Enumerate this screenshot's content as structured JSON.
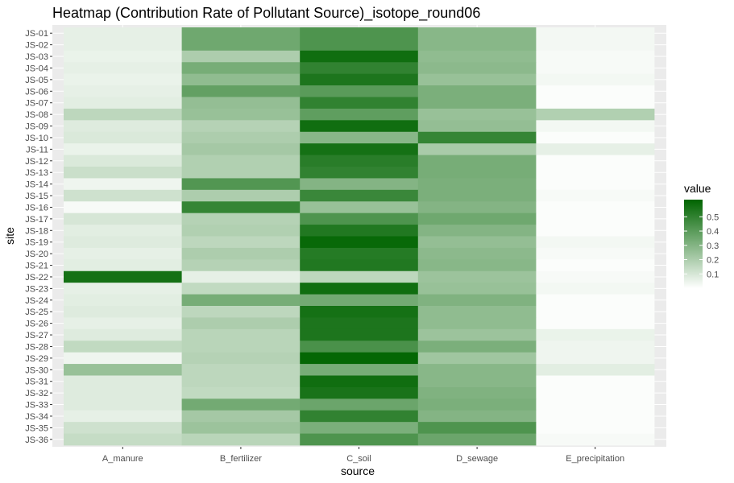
{
  "chart_data": {
    "type": "heatmap",
    "title": "Heatmap (Contribution Rate of Pollutant Source)_isotope_round06",
    "xlabel": "source",
    "ylabel": "site",
    "x_categories": [
      "A_manure",
      "B_fertilizer",
      "C_soil",
      "D_sewage",
      "E_precipitation"
    ],
    "y_categories": [
      "JS-01",
      "JS-02",
      "JS-03",
      "JS-04",
      "JS-05",
      "JS-06",
      "JS-07",
      "JS-08",
      "JS-09",
      "JS-10",
      "JS-11",
      "JS-12",
      "JS-13",
      "JS-14",
      "JS-15",
      "JS-16",
      "JS-17",
      "JS-18",
      "JS-19",
      "JS-20",
      "JS-21",
      "JS-22",
      "JS-23",
      "JS-24",
      "JS-25",
      "JS-26",
      "JS-27",
      "JS-28",
      "JS-29",
      "JS-30",
      "JS-31",
      "JS-32",
      "JS-33",
      "JS-34",
      "JS-35",
      "JS-36"
    ],
    "values": [
      [
        0.06,
        0.35,
        0.43,
        0.29,
        0.03
      ],
      [
        0.06,
        0.35,
        0.43,
        0.29,
        0.03
      ],
      [
        0.05,
        0.2,
        0.58,
        0.27,
        0.02
      ],
      [
        0.06,
        0.33,
        0.5,
        0.28,
        0.02
      ],
      [
        0.05,
        0.27,
        0.55,
        0.25,
        0.03
      ],
      [
        0.06,
        0.38,
        0.4,
        0.32,
        0.01
      ],
      [
        0.07,
        0.26,
        0.5,
        0.32,
        0.01
      ],
      [
        0.16,
        0.25,
        0.39,
        0.25,
        0.19
      ],
      [
        0.08,
        0.18,
        0.58,
        0.26,
        0.03
      ],
      [
        0.09,
        0.2,
        0.29,
        0.49,
        0.01
      ],
      [
        0.05,
        0.22,
        0.57,
        0.21,
        0.06
      ],
      [
        0.09,
        0.19,
        0.52,
        0.33,
        0.01
      ],
      [
        0.13,
        0.19,
        0.5,
        0.33,
        0.01
      ],
      [
        0.04,
        0.42,
        0.3,
        0.32,
        0.01
      ],
      [
        0.12,
        0.2,
        0.48,
        0.32,
        0.02
      ],
      [
        0.02,
        0.49,
        0.25,
        0.3,
        0.01
      ],
      [
        0.1,
        0.18,
        0.43,
        0.35,
        0.01
      ],
      [
        0.07,
        0.19,
        0.54,
        0.3,
        0.01
      ],
      [
        0.08,
        0.16,
        0.6,
        0.26,
        0.03
      ],
      [
        0.06,
        0.2,
        0.53,
        0.28,
        0.02
      ],
      [
        0.07,
        0.18,
        0.54,
        0.29,
        0.01
      ],
      [
        0.57,
        0.06,
        0.16,
        0.24,
        0.02
      ],
      [
        0.06,
        0.15,
        0.58,
        0.25,
        0.03
      ],
      [
        0.07,
        0.33,
        0.34,
        0.31,
        0.01
      ],
      [
        0.08,
        0.16,
        0.57,
        0.27,
        0.01
      ],
      [
        0.06,
        0.2,
        0.55,
        0.27,
        0.01
      ],
      [
        0.08,
        0.17,
        0.55,
        0.24,
        0.05
      ],
      [
        0.15,
        0.17,
        0.44,
        0.32,
        0.04
      ],
      [
        0.04,
        0.18,
        0.61,
        0.23,
        0.04
      ],
      [
        0.25,
        0.16,
        0.33,
        0.29,
        0.07
      ],
      [
        0.08,
        0.16,
        0.58,
        0.29,
        0.01
      ],
      [
        0.08,
        0.15,
        0.56,
        0.31,
        0.01
      ],
      [
        0.08,
        0.34,
        0.36,
        0.32,
        0.01
      ],
      [
        0.06,
        0.22,
        0.5,
        0.3,
        0.01
      ],
      [
        0.12,
        0.24,
        0.32,
        0.43,
        0.01
      ],
      [
        0.14,
        0.17,
        0.43,
        0.36,
        0.02
      ]
    ],
    "value_range": [
      0.0,
      0.62
    ],
    "color_low": "#ffffff",
    "color_high": "#006400",
    "legend": {
      "title": "value",
      "ticks": [
        "0.1",
        "0.2",
        "0.3",
        "0.4",
        "0.5"
      ],
      "placement": "right"
    },
    "panel_background": "#ebebeb",
    "grid": true
  }
}
